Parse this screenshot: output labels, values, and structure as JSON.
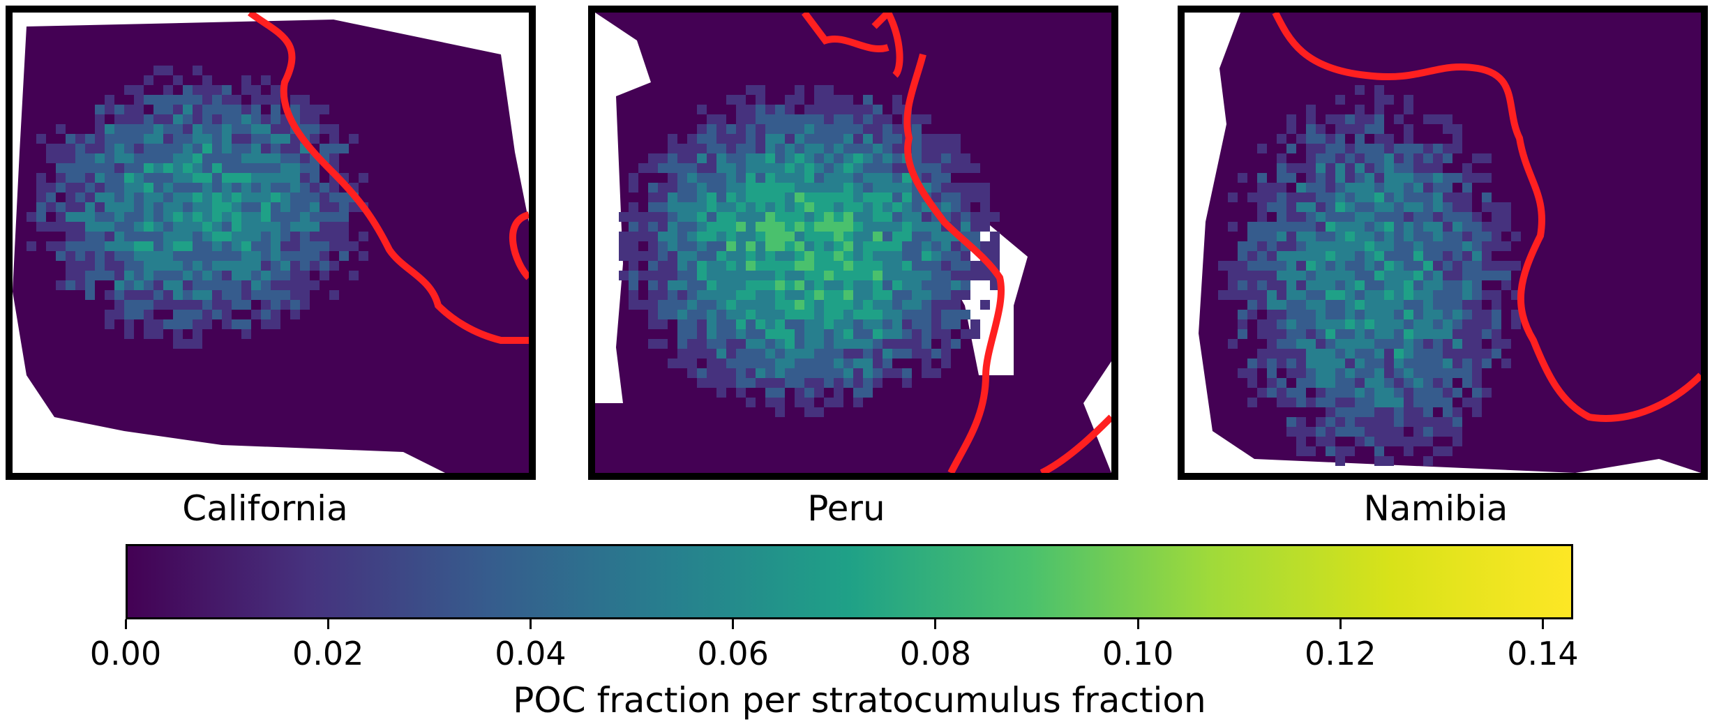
{
  "chart_data": {
    "type": "heatmap",
    "panels": [
      {
        "name": "California",
        "title": "California"
      },
      {
        "name": "Peru",
        "title": "Peru"
      },
      {
        "name": "Namibia",
        "title": "Namibia"
      }
    ],
    "colorbar": {
      "label": "POC fraction per stratocumulus fraction",
      "colormap": "viridis",
      "range": [
        0.0,
        0.143
      ],
      "ticks": [
        "0.00",
        "0.02",
        "0.04",
        "0.06",
        "0.08",
        "0.10",
        "0.12",
        "0.14"
      ],
      "tick_values": [
        0.0,
        0.02,
        0.04,
        0.06,
        0.08,
        0.1,
        0.12,
        0.14
      ]
    },
    "coastline_color": "#ff2020",
    "missing_color": "#ffffff"
  }
}
